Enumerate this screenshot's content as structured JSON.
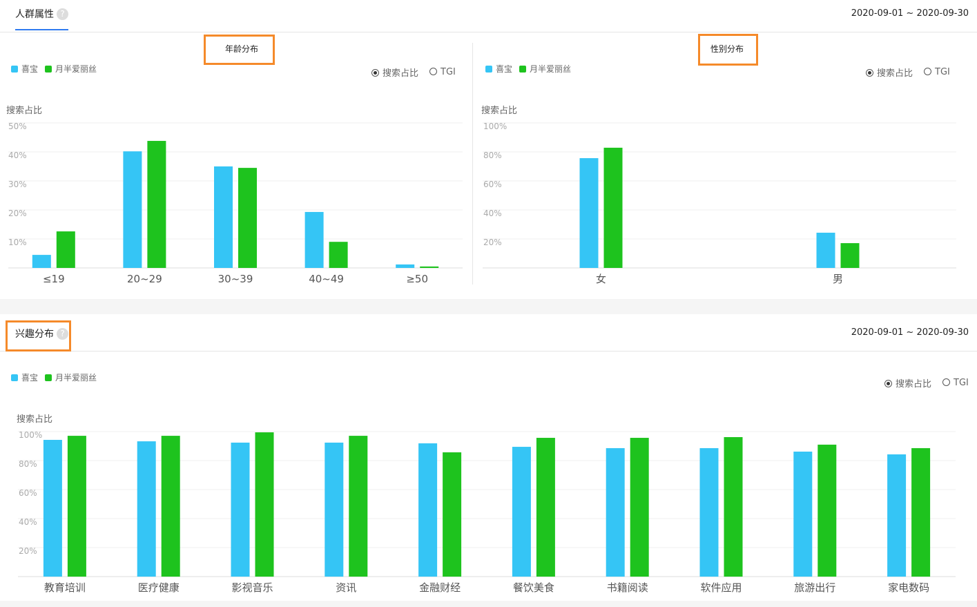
{
  "colors": {
    "series1": "#35c5f5",
    "series2": "#1ec31e",
    "highlight": "#f58a2a",
    "tab_underline": "#2f7bf0"
  },
  "top": {
    "title": "人群属性",
    "help_icon": "?",
    "date_range": "2020-09-01 ~ 2020-09-30"
  },
  "bottom": {
    "title": "兴趣分布",
    "help_icon": "?",
    "date_range": "2020-09-01 ~ 2020-09-30"
  },
  "legend": [
    "喜宝",
    "月半爱丽丝"
  ],
  "radio": {
    "options": [
      "搜索占比",
      "TGI"
    ],
    "selected": "搜索占比"
  },
  "chart_data": [
    {
      "type": "bar",
      "title": "年龄分布",
      "ylabel": "搜索占比",
      "ylim": [
        0,
        50
      ],
      "yticks": [
        "10%",
        "20%",
        "30%",
        "40%",
        "50%"
      ],
      "grid": true,
      "legend": "top-left",
      "categories": [
        "≤19",
        "20~29",
        "30~39",
        "40~49",
        "≥50"
      ],
      "series": [
        {
          "name": "喜宝",
          "values": [
            4.5,
            40.2,
            35,
            19.3,
            1.2
          ]
        },
        {
          "name": "月半爱丽丝",
          "values": [
            12.6,
            43.8,
            34.5,
            9,
            0.5
          ]
        }
      ]
    },
    {
      "type": "bar",
      "title": "性别分布",
      "ylabel": "搜索占比",
      "ylim": [
        0,
        100
      ],
      "yticks": [
        "20%",
        "40%",
        "60%",
        "80%",
        "100%"
      ],
      "grid": true,
      "legend": "top-left",
      "categories": [
        "女",
        "男"
      ],
      "series": [
        {
          "name": "喜宝",
          "values": [
            75.7,
            24.3
          ]
        },
        {
          "name": "月半爱丽丝",
          "values": [
            82.9,
            17.1
          ]
        }
      ]
    },
    {
      "type": "bar",
      "title": "兴趣分布",
      "ylabel": "搜索占比",
      "ylim": [
        0,
        100
      ],
      "yticks": [
        "20%",
        "40%",
        "60%",
        "80%",
        "100%"
      ],
      "grid": true,
      "legend": "top-left",
      "categories": [
        "教育培训",
        "医疗健康",
        "影视音乐",
        "资讯",
        "金融财经",
        "餐饮美食",
        "书籍阅读",
        "软件应用",
        "旅游出行",
        "家电数码"
      ],
      "series": [
        {
          "name": "喜宝",
          "values": [
            94.3,
            93.3,
            92.4,
            92.4,
            91.9,
            89.5,
            88.6,
            88.6,
            86.2,
            84.3
          ]
        },
        {
          "name": "月半爱丽丝",
          "values": [
            97.1,
            97.1,
            99.5,
            97.1,
            85.7,
            95.7,
            95.7,
            96.2,
            91,
            88.6
          ]
        }
      ]
    }
  ]
}
